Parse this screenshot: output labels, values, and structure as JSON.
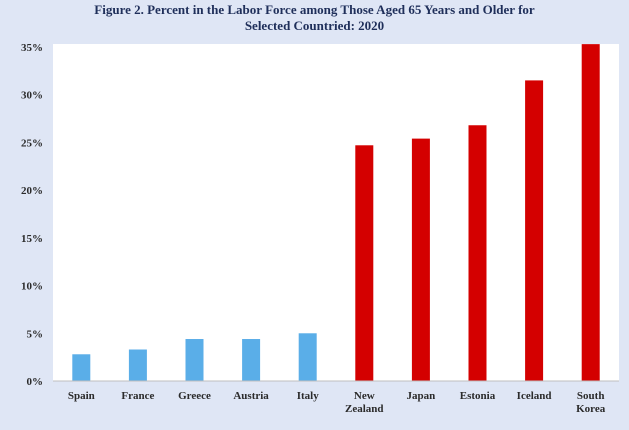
{
  "chart_data": {
    "type": "bar",
    "title_lines": [
      "Figure 2. Percent in the Labor Force among Those Aged 65 Years and Older for",
      "Selected Countried: 2020"
    ],
    "categories": [
      [
        "Spain"
      ],
      [
        "France"
      ],
      [
        "Greece"
      ],
      [
        "Austria"
      ],
      [
        "Italy"
      ],
      [
        "New",
        "Zealand"
      ],
      [
        "Japan"
      ],
      [
        "Estonia"
      ],
      [
        "Iceland"
      ],
      [
        "South",
        "Korea"
      ]
    ],
    "values": [
      2.8,
      3.3,
      4.4,
      4.4,
      5.0,
      24.7,
      25.4,
      26.8,
      31.5,
      35.3
    ],
    "bar_colors": [
      "#5aaee8",
      "#5aaee8",
      "#5aaee8",
      "#5aaee8",
      "#5aaee8",
      "#d40000",
      "#d40000",
      "#d40000",
      "#d40000",
      "#d40000"
    ],
    "yticks": [
      "0%",
      "5%",
      "10%",
      "15%",
      "20%",
      "25%",
      "30%",
      "35%"
    ],
    "ylim": [
      0,
      35
    ],
    "grid": false,
    "legend": "none"
  }
}
